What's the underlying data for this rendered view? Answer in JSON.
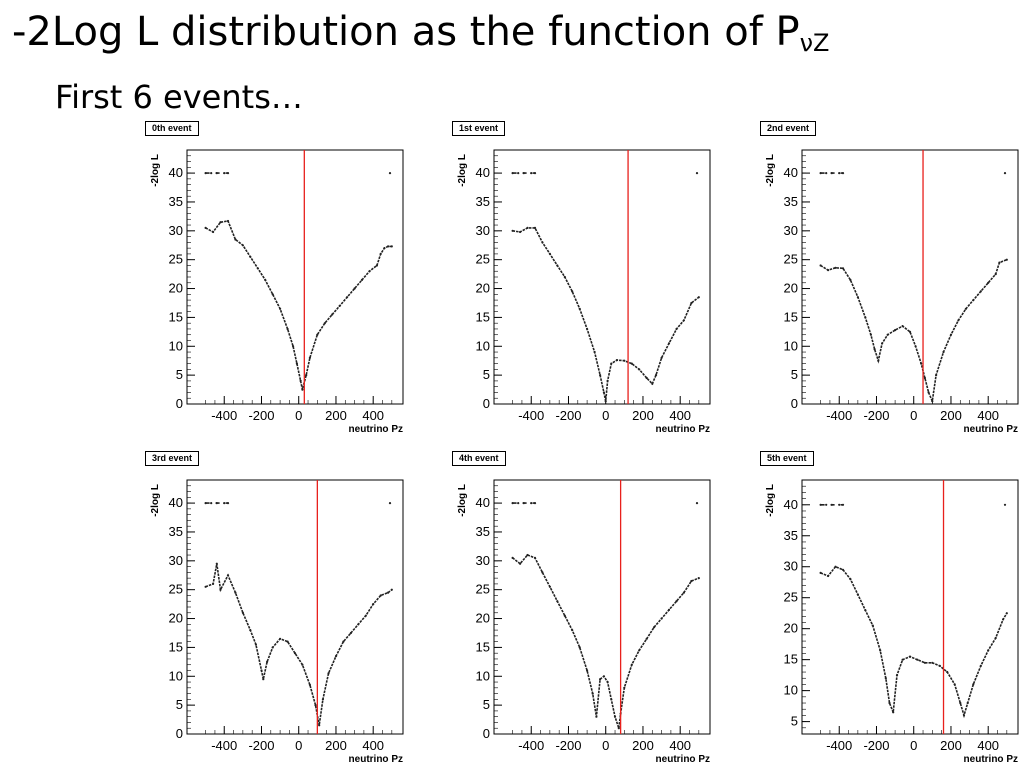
{
  "page": {
    "title_main": "-2Log L distribution as the function of P",
    "title_sub": "νZ",
    "subtitle": "First 6 events…"
  },
  "colors": {
    "curve": "#222222",
    "marker_line": "#e8201c",
    "axis": "#000000"
  },
  "chart_data": [
    {
      "type": "scatter",
      "title": "0th event",
      "xlabel": "neutrino Pz",
      "ylabel": "-2log L",
      "xlim": [
        -600,
        560
      ],
      "ylim": [
        0,
        44
      ],
      "xticks": [
        -400,
        -200,
        0,
        200,
        400
      ],
      "yticks": [
        0,
        5,
        10,
        15,
        20,
        25,
        30,
        35,
        40
      ],
      "marker_x": 30,
      "series": [
        {
          "x": [
            -500,
            -460,
            -420,
            -380,
            -340,
            -300,
            -260,
            -220,
            -180,
            -140,
            -100,
            -60,
            -30,
            -10,
            10,
            20,
            40,
            60,
            100,
            140,
            180,
            220,
            260,
            300,
            340,
            380,
            420,
            440,
            460,
            480,
            500
          ],
          "y": [
            30.5,
            29.8,
            31.5,
            31.7,
            28.5,
            27.5,
            25.5,
            23.5,
            21.5,
            19,
            16.5,
            13,
            10,
            7,
            4,
            2.5,
            5,
            8,
            12,
            14,
            15.5,
            17,
            18.5,
            20,
            21.5,
            23,
            24,
            26,
            27,
            27.3,
            27.3
          ]
        },
        {
          "x": [
            -500,
            -470,
            -440,
            -400,
            -380
          ],
          "y": [
            40,
            40,
            40,
            40,
            40
          ]
        },
        {
          "x": [
            490
          ],
          "y": [
            40
          ]
        }
      ]
    },
    {
      "type": "scatter",
      "title": "1st event",
      "xlabel": "neutrino Pz",
      "ylabel": "-2log L",
      "xlim": [
        -600,
        560
      ],
      "ylim": [
        0,
        44
      ],
      "xticks": [
        -400,
        -200,
        0,
        200,
        400
      ],
      "yticks": [
        0,
        5,
        10,
        15,
        20,
        25,
        30,
        35,
        40
      ],
      "marker_x": 120,
      "series": [
        {
          "x": [
            -500,
            -460,
            -420,
            -380,
            -340,
            -300,
            -260,
            -220,
            -180,
            -140,
            -100,
            -60,
            -30,
            -10,
            0,
            10,
            30,
            60,
            100,
            140,
            180,
            220,
            250,
            270,
            300,
            340,
            380,
            420,
            460,
            500
          ],
          "y": [
            30,
            29.8,
            30.5,
            30.5,
            28,
            26,
            24,
            22,
            19.5,
            16.5,
            13,
            9,
            5,
            2,
            0.5,
            4,
            7,
            7.6,
            7.5,
            7,
            6,
            4.5,
            3.5,
            5,
            8,
            10.5,
            13,
            14.5,
            17.5,
            18.5
          ]
        },
        {
          "x": [
            -500,
            -470,
            -440,
            -400,
            -380
          ],
          "y": [
            40,
            40,
            40,
            40,
            40
          ]
        },
        {
          "x": [
            490
          ],
          "y": [
            40
          ]
        }
      ]
    },
    {
      "type": "scatter",
      "title": "2nd event",
      "xlabel": "neutrino Pz",
      "ylabel": "-2log L",
      "xlim": [
        -600,
        560
      ],
      "ylim": [
        0,
        44
      ],
      "xticks": [
        -400,
        -200,
        0,
        200,
        400
      ],
      "yticks": [
        0,
        5,
        10,
        15,
        20,
        25,
        30,
        35,
        40
      ],
      "marker_x": 50,
      "series": [
        {
          "x": [
            -500,
            -460,
            -420,
            -380,
            -340,
            -300,
            -260,
            -230,
            -210,
            -190,
            -170,
            -140,
            -100,
            -60,
            -20,
            10,
            40,
            60,
            80,
            100,
            120,
            160,
            200,
            240,
            280,
            320,
            360,
            400,
            440,
            460,
            500
          ],
          "y": [
            24,
            23.2,
            23.6,
            23.5,
            21.5,
            18.5,
            15,
            12,
            9.5,
            7.5,
            10.5,
            12,
            12.8,
            13.5,
            12.5,
            10,
            7,
            4.5,
            2,
            0.5,
            5,
            9,
            12,
            14.5,
            16.5,
            18,
            19.5,
            21,
            22.5,
            24.5,
            25
          ]
        },
        {
          "x": [
            -500,
            -470,
            -440,
            -400,
            -380
          ],
          "y": [
            40,
            40,
            40,
            40,
            40
          ]
        },
        {
          "x": [
            490
          ],
          "y": [
            40
          ]
        }
      ]
    },
    {
      "type": "scatter",
      "title": "3rd event",
      "xlabel": "neutrino Pz",
      "ylabel": "-2log L",
      "xlim": [
        -600,
        560
      ],
      "ylim": [
        0,
        44
      ],
      "xticks": [
        -400,
        -200,
        0,
        200,
        400
      ],
      "yticks": [
        0,
        5,
        10,
        15,
        20,
        25,
        30,
        35,
        40
      ],
      "marker_x": 100,
      "series": [
        {
          "x": [
            -500,
            -460,
            -440,
            -420,
            -380,
            -340,
            -300,
            -260,
            -230,
            -200,
            -190,
            -170,
            -140,
            -100,
            -60,
            -20,
            20,
            60,
            90,
            110,
            130,
            160,
            200,
            240,
            280,
            320,
            360,
            400,
            440,
            480,
            500
          ],
          "y": [
            25.5,
            26,
            29.5,
            25,
            27.5,
            24.5,
            21,
            18,
            15.5,
            11,
            9.5,
            12.5,
            15,
            16.5,
            16,
            14,
            12,
            8.5,
            5,
            1.5,
            6,
            10.5,
            13.5,
            16,
            17.5,
            19,
            20.5,
            22.5,
            24,
            24.5,
            25
          ]
        },
        {
          "x": [
            -500,
            -470,
            -440,
            -400,
            -380
          ],
          "y": [
            40,
            40,
            40,
            40,
            40
          ]
        },
        {
          "x": [
            490
          ],
          "y": [
            40
          ]
        }
      ]
    },
    {
      "type": "scatter",
      "title": "4th event",
      "xlabel": "neutrino Pz",
      "ylabel": "-2log L",
      "xlim": [
        -600,
        560
      ],
      "ylim": [
        0,
        44
      ],
      "xticks": [
        -400,
        -200,
        0,
        200,
        400
      ],
      "yticks": [
        0,
        5,
        10,
        15,
        20,
        25,
        30,
        35,
        40
      ],
      "marker_x": 80,
      "series": [
        {
          "x": [
            -500,
            -460,
            -420,
            -380,
            -340,
            -300,
            -260,
            -220,
            -180,
            -140,
            -100,
            -70,
            -50,
            -30,
            -10,
            10,
            30,
            50,
            70,
            80,
            100,
            140,
            180,
            220,
            260,
            300,
            340,
            380,
            420,
            460,
            500
          ],
          "y": [
            30.5,
            29.5,
            31,
            30.5,
            28,
            25.5,
            23,
            20.5,
            18,
            15,
            11,
            7,
            3,
            9.5,
            10,
            9,
            6,
            3,
            1,
            3.5,
            8,
            12,
            14.5,
            16.5,
            18.5,
            20,
            21.5,
            23,
            24.5,
            26.5,
            27
          ]
        },
        {
          "x": [
            -500,
            -470,
            -440,
            -400,
            -380
          ],
          "y": [
            40,
            40,
            40,
            40,
            40
          ]
        },
        {
          "x": [
            490
          ],
          "y": [
            40
          ]
        }
      ]
    },
    {
      "type": "scatter",
      "title": "5th event",
      "xlabel": "neutrino Pz",
      "ylabel": "-2log L",
      "xlim": [
        -600,
        560
      ],
      "ylim": [
        3,
        44
      ],
      "xticks": [
        -400,
        -200,
        0,
        200,
        400
      ],
      "yticks": [
        5,
        10,
        15,
        20,
        25,
        30,
        35,
        40
      ],
      "marker_x": 160,
      "series": [
        {
          "x": [
            -500,
            -460,
            -420,
            -380,
            -340,
            -300,
            -260,
            -220,
            -180,
            -150,
            -130,
            -110,
            -90,
            -60,
            -20,
            20,
            60,
            100,
            140,
            180,
            220,
            250,
            270,
            290,
            320,
            360,
            400,
            440,
            480,
            500
          ],
          "y": [
            29,
            28.5,
            30,
            29.5,
            28,
            25.5,
            23,
            20.5,
            16.5,
            12,
            8,
            6.5,
            12.5,
            15,
            15.5,
            15,
            14.5,
            14.5,
            14,
            13,
            11,
            8,
            6,
            8,
            11,
            14,
            16.5,
            18.5,
            21.5,
            22.5
          ]
        },
        {
          "x": [
            -500,
            -470,
            -440,
            -400,
            -380
          ],
          "y": [
            40,
            40,
            40,
            40,
            40
          ]
        },
        {
          "x": [
            490
          ],
          "y": [
            40
          ]
        }
      ]
    }
  ]
}
